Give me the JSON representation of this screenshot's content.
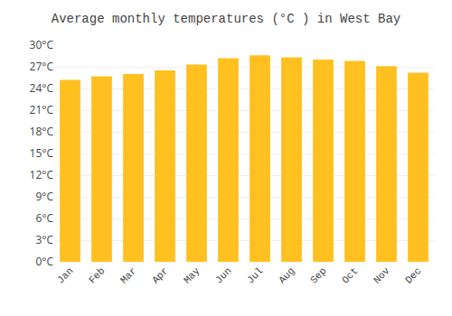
{
  "chart_data": {
    "type": "bar",
    "title": "Average monthly temperatures (°C ) in West Bay",
    "categories": [
      "Jan",
      "Feb",
      "Mar",
      "Apr",
      "May",
      "Jun",
      "Jul",
      "Aug",
      "Sep",
      "Oct",
      "Nov",
      "Dec"
    ],
    "values": [
      25.2,
      25.7,
      26.0,
      26.5,
      27.3,
      28.2,
      28.6,
      28.3,
      28.0,
      27.8,
      27.1,
      26.2
    ],
    "color": "#FFC020",
    "ylim": [
      0,
      30
    ],
    "yticks": [
      {
        "value": 0,
        "label": "0°C"
      },
      {
        "value": 3,
        "label": "3°C"
      },
      {
        "value": 6,
        "label": "6°C"
      },
      {
        "value": 9,
        "label": "9°C"
      },
      {
        "value": 12,
        "label": "12°C"
      },
      {
        "value": 15,
        "label": "15°C"
      },
      {
        "value": 18,
        "label": "18°C"
      },
      {
        "value": 21,
        "label": "21°C"
      },
      {
        "value": 24,
        "label": "24°C"
      },
      {
        "value": 27,
        "label": "27°C"
      },
      {
        "value": 30,
        "label": "30°C"
      }
    ],
    "grid": true
  }
}
